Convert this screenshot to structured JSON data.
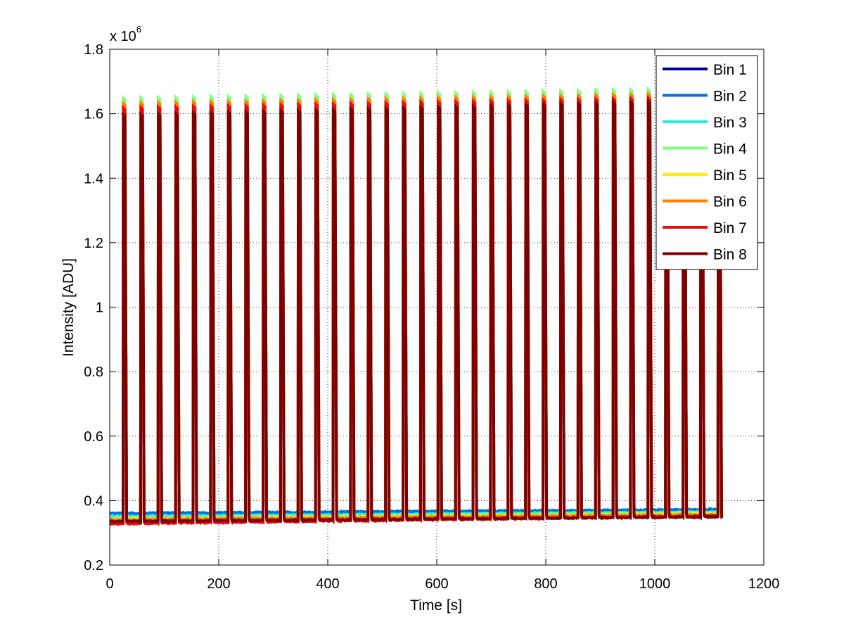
{
  "chart_data": {
    "type": "line",
    "title": "",
    "xlabel": "Time [s]",
    "ylabel": "Intensity [ADU]",
    "multiplier_label": "x 10",
    "multiplier_exponent": "6",
    "xlim": [
      0,
      1200
    ],
    "ylim": [
      0.2,
      1.8
    ],
    "y_scale": 1000000,
    "xticks": [
      0,
      200,
      400,
      600,
      800,
      1000,
      1200
    ],
    "yticks": [
      0.2,
      0.4,
      0.6,
      0.8,
      1.0,
      1.2,
      1.4,
      1.6,
      1.8
    ],
    "ytick_labels": [
      "0.2",
      "0.4",
      "0.6",
      "0.8",
      "1",
      "1.2",
      "1.4",
      "1.6",
      "1.8"
    ],
    "grid": true,
    "legend_position": "top-right",
    "signal": {
      "first_pulse_time": 25,
      "pulse_period": 32.1,
      "pulse_count": 35,
      "end_time": 1125,
      "pulse_width": 6
    },
    "series": [
      {
        "name": "Bin 1",
        "color": "#00008f",
        "baseline_start": 0.345,
        "baseline_end": 0.36,
        "peak_start": 1.45,
        "peak_end": 1.52
      },
      {
        "name": "Bin 2",
        "color": "#0070df",
        "baseline_start": 0.36,
        "baseline_end": 0.372,
        "peak_start": 1.54,
        "peak_end": 1.58
      },
      {
        "name": "Bin 3",
        "color": "#20efdf",
        "baseline_start": 0.35,
        "baseline_end": 0.365,
        "peak_start": 1.58,
        "peak_end": 1.62
      },
      {
        "name": "Bin 4",
        "color": "#80ff80",
        "baseline_start": 0.345,
        "baseline_end": 0.362,
        "peak_start": 1.648,
        "peak_end": 1.678
      },
      {
        "name": "Bin 5",
        "color": "#ffef00",
        "baseline_start": 0.342,
        "baseline_end": 0.358,
        "peak_start": 1.615,
        "peak_end": 1.65
      },
      {
        "name": "Bin 6",
        "color": "#ff8000",
        "baseline_start": 0.34,
        "baseline_end": 0.356,
        "peak_start": 1.632,
        "peak_end": 1.664
      },
      {
        "name": "Bin 7",
        "color": "#df1010",
        "baseline_start": 0.328,
        "baseline_end": 0.352,
        "peak_start": 1.618,
        "peak_end": 1.652
      },
      {
        "name": "Bin 8",
        "color": "#7f0000",
        "baseline_start": 0.335,
        "baseline_end": 0.35,
        "peak_start": 1.596,
        "peak_end": 1.642
      }
    ]
  }
}
